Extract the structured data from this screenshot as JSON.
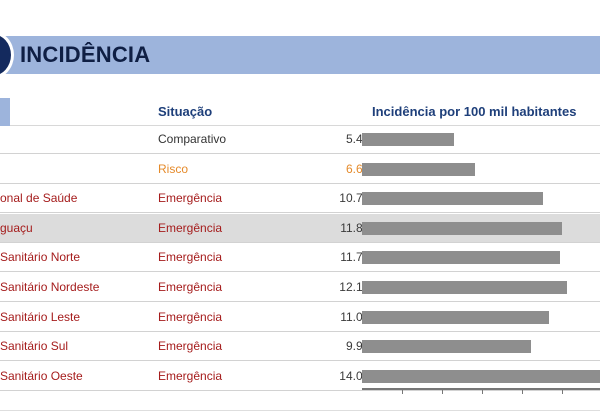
{
  "title": "INCIDÊNCIA",
  "columns": {
    "situacao": "Situação",
    "incidencia": "Incidência por 100 mil habitantes"
  },
  "bar_max": 14.089,
  "rows": [
    {
      "name": "",
      "situacao": "Comparativo",
      "valor": "5.452",
      "num": 5.452,
      "status": "comparativo",
      "shaded": false
    },
    {
      "name": "",
      "situacao": "Risco",
      "valor": "6.686",
      "num": 6.686,
      "status": "risco",
      "shaded": false
    },
    {
      "name": "onal de Saúde",
      "situacao": "Emergência",
      "valor": "10.742",
      "num": 10.742,
      "status": "emergencia",
      "shaded": false
    },
    {
      "name": "guaçu",
      "situacao": "Emergência",
      "valor": "11.828",
      "num": 11.828,
      "status": "emergencia",
      "shaded": true
    },
    {
      "name": "Sanitário Norte",
      "situacao": "Emergência",
      "valor": "11.736",
      "num": 11.736,
      "status": "emergencia",
      "shaded": false
    },
    {
      "name": "Sanitário Nordeste",
      "situacao": "Emergência",
      "valor": "12.159",
      "num": 12.159,
      "status": "emergencia",
      "shaded": false
    },
    {
      "name": "Sanitário Leste",
      "situacao": "Emergência",
      "valor": "11.070",
      "num": 11.07,
      "status": "emergencia",
      "shaded": false
    },
    {
      "name": "Sanitário Sul",
      "situacao": "Emergência",
      "valor": "9.994",
      "num": 9.994,
      "status": "emergencia",
      "shaded": false
    },
    {
      "name": "Sanitário Oeste",
      "situacao": "Emergência",
      "valor": "14.089",
      "num": 14.089,
      "status": "emergencia",
      "shaded": false
    }
  ],
  "colors": {
    "title_band": "#9db4dc",
    "title_text": "#0f1f44",
    "header_text": "#1e3f7a",
    "emergencia": "#a51c1c",
    "risco": "#e58a2a",
    "comparativo": "#333333",
    "bar": "#8e8e8e",
    "shaded_row": "#dcdcdc"
  }
}
